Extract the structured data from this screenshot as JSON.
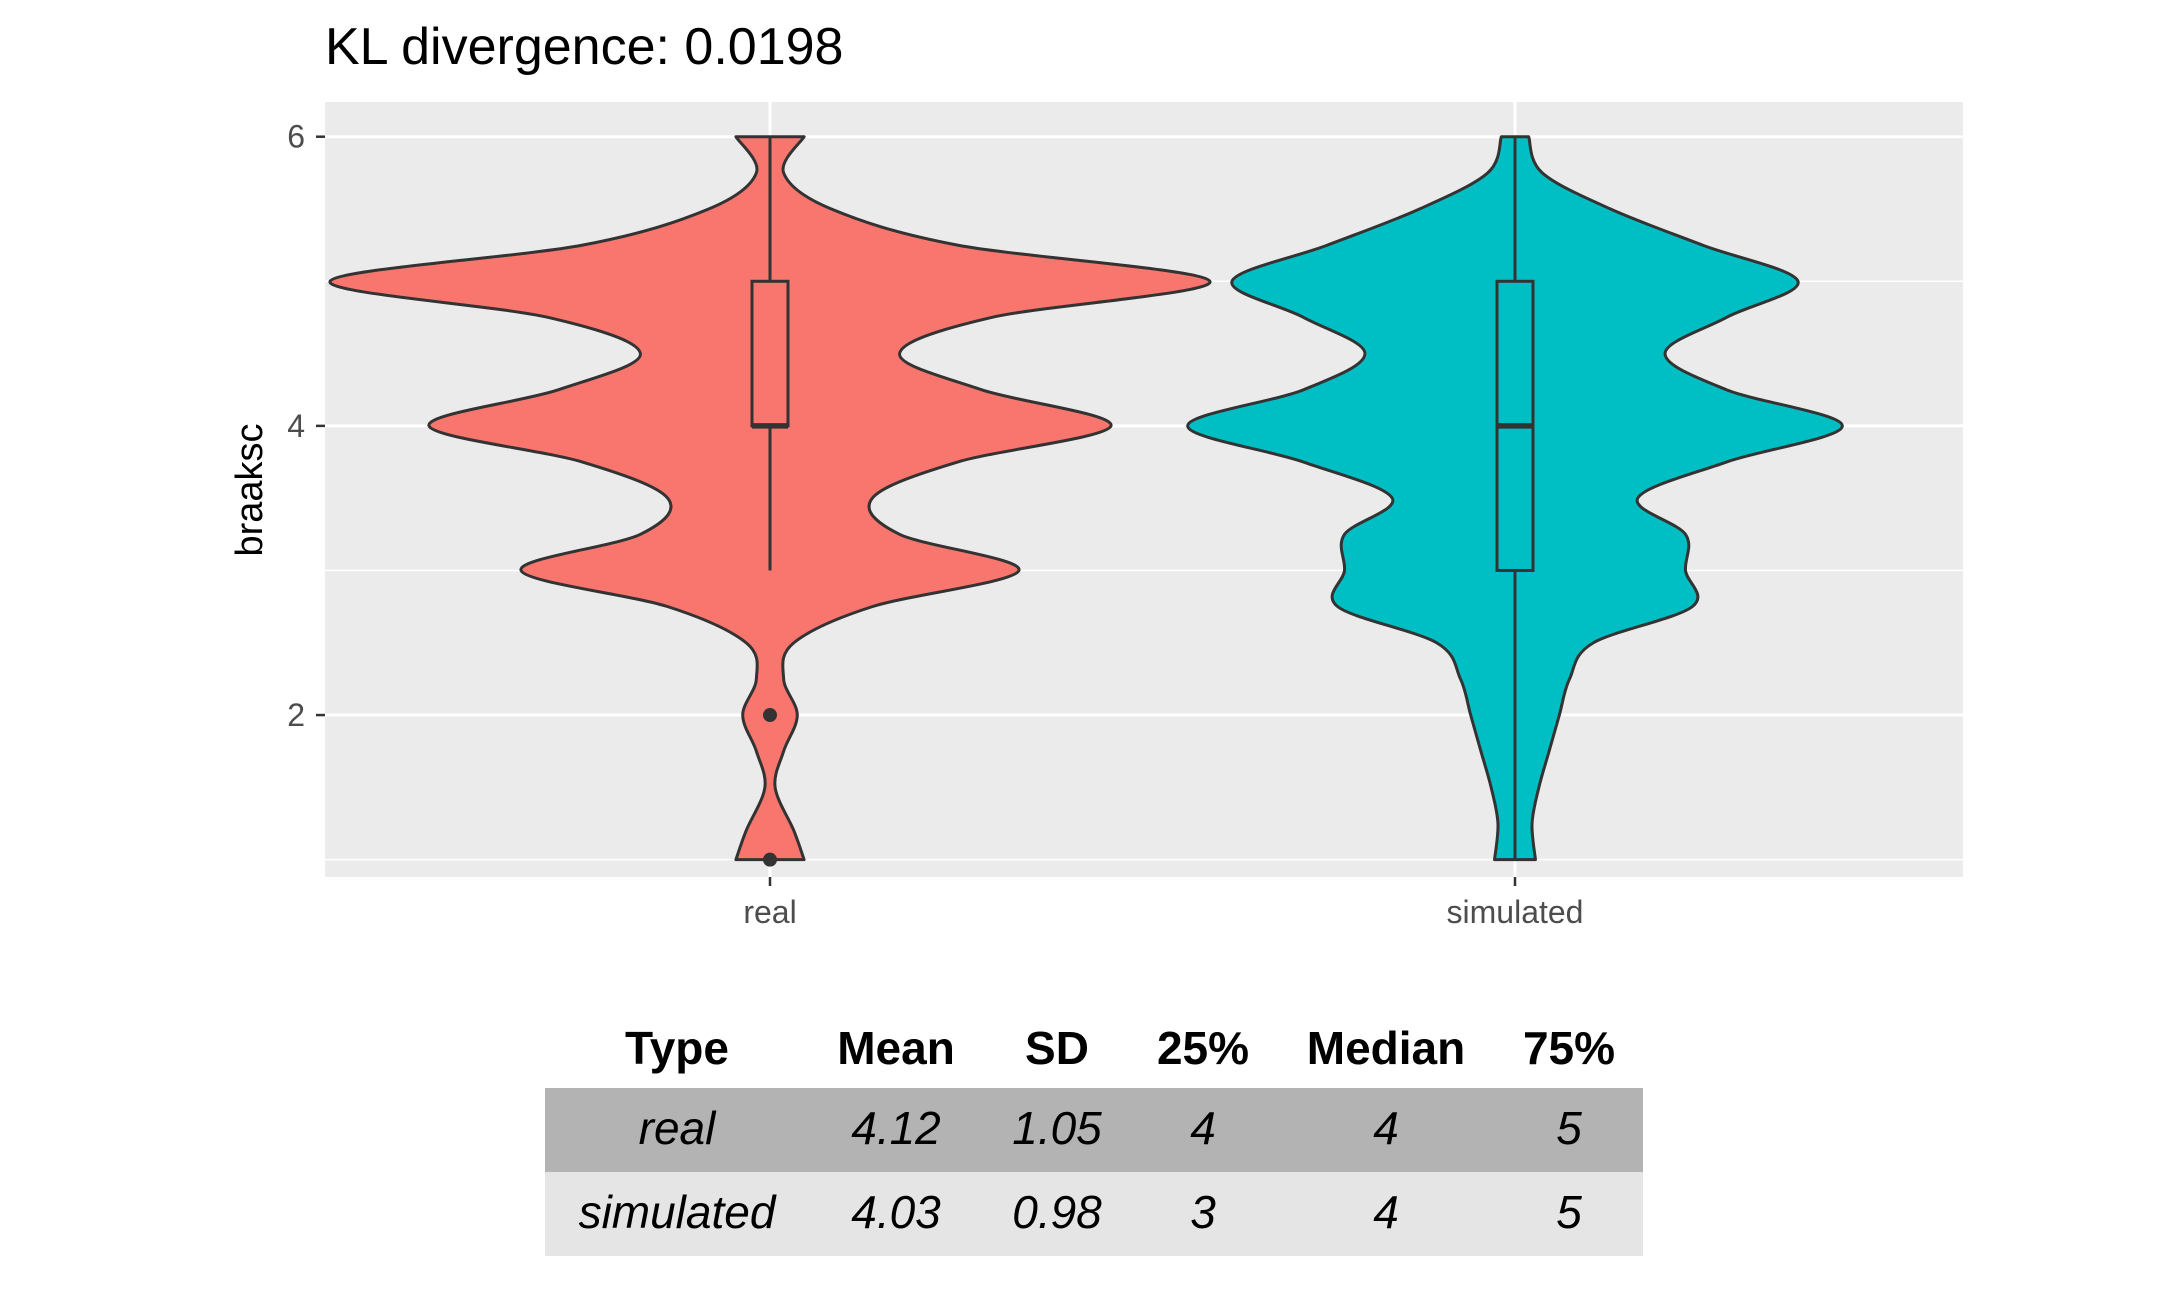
{
  "chart_data": {
    "type": "violin",
    "title": "KL divergence: 0.0198",
    "xlabel": "",
    "ylabel": "braaksc",
    "ylim": [
      0.88,
      6.24
    ],
    "y_ticks": [
      2,
      4,
      6
    ],
    "grid": true,
    "categories": [
      "real",
      "simulated"
    ],
    "series": [
      {
        "name": "real",
        "color": "#F8766D",
        "min": 1,
        "max": 6,
        "box": {
          "q1": 4,
          "median": 4,
          "q3": 5,
          "whisker_low": 3,
          "whisker_high": 6
        },
        "outliers": [
          2,
          1
        ],
        "density": [
          [
            1.0,
            0.1
          ],
          [
            1.2,
            0.07
          ],
          [
            1.5,
            0.015
          ],
          [
            1.75,
            0.04
          ],
          [
            2.0,
            0.08
          ],
          [
            2.25,
            0.04
          ],
          [
            2.5,
            0.07
          ],
          [
            2.75,
            0.3
          ],
          [
            3.0,
            0.73
          ],
          [
            3.25,
            0.38
          ],
          [
            3.5,
            0.3
          ],
          [
            3.75,
            0.55
          ],
          [
            4.0,
            1.0
          ],
          [
            4.25,
            0.62
          ],
          [
            4.5,
            0.38
          ],
          [
            4.75,
            0.65
          ],
          [
            5.0,
            1.29
          ],
          [
            5.25,
            0.55
          ],
          [
            5.5,
            0.18
          ],
          [
            5.75,
            0.04
          ],
          [
            6.0,
            0.1
          ]
        ]
      },
      {
        "name": "simulated",
        "color": "#00BFC4",
        "min": 1,
        "max": 6,
        "box": {
          "q1": 3,
          "median": 4,
          "q3": 5,
          "whisker_low": 1,
          "whisker_high": 6
        },
        "outliers": [],
        "density": [
          [
            1.0,
            0.06
          ],
          [
            1.25,
            0.05
          ],
          [
            1.5,
            0.07
          ],
          [
            1.75,
            0.1
          ],
          [
            2.0,
            0.13
          ],
          [
            2.25,
            0.16
          ],
          [
            2.5,
            0.23
          ],
          [
            2.75,
            0.52
          ],
          [
            3.0,
            0.5
          ],
          [
            3.25,
            0.5
          ],
          [
            3.5,
            0.36
          ],
          [
            3.75,
            0.62
          ],
          [
            4.0,
            0.96
          ],
          [
            4.25,
            0.62
          ],
          [
            4.5,
            0.44
          ],
          [
            4.75,
            0.62
          ],
          [
            5.0,
            0.83
          ],
          [
            5.25,
            0.55
          ],
          [
            5.5,
            0.28
          ],
          [
            5.75,
            0.08
          ],
          [
            6.0,
            0.04
          ]
        ]
      }
    ]
  },
  "table": {
    "headers": [
      "Type",
      "Mean",
      "SD",
      "25%",
      "Median",
      "75%"
    ],
    "rows": [
      [
        "real",
        "4.12",
        "1.05",
        "4",
        "4",
        "5"
      ],
      [
        "simulated",
        "4.03",
        "0.98",
        "3",
        "4",
        "5"
      ]
    ],
    "row_colors": [
      "#b3b3b3",
      "#e5e5e5"
    ]
  }
}
